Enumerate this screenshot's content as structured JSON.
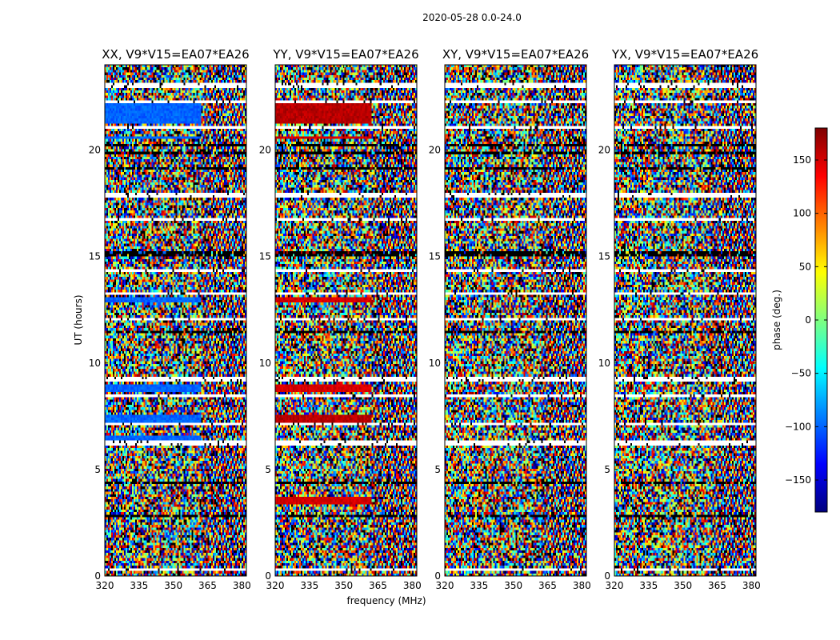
{
  "chart_data": {
    "type": "heatmap",
    "suptitle": "2020-05-28 0.0-24.0",
    "xlabel": "frequency (MHz)",
    "ylabel": "UT (hours)",
    "xlim": [
      320,
      382
    ],
    "ylim": [
      0,
      24
    ],
    "xticks": [
      320,
      335,
      350,
      365,
      380
    ],
    "yticks": [
      0,
      5,
      10,
      15,
      20
    ],
    "panels": [
      {
        "title": "XX, V9*V15=EA07*EA26",
        "pol": "XX"
      },
      {
        "title": "YY, V9*V15=EA07*EA26",
        "pol": "YY"
      },
      {
        "title": "XY, V9*V15=EA07*EA26",
        "pol": "XY"
      },
      {
        "title": "YX, V9*V15=EA07*EA26",
        "pol": "YX"
      }
    ],
    "colorbar": {
      "label": "phase (deg.)",
      "range": [
        -180,
        180
      ],
      "ticks": [
        -150,
        -100,
        -50,
        0,
        50,
        100,
        150
      ],
      "ticklabels": [
        "−150",
        "−100",
        "−50",
        "0",
        "50",
        "100",
        "150"
      ],
      "colormap": "jet"
    },
    "flagged_ut_hours": [
      [
        0.2,
        0.35
      ],
      [
        6.1,
        6.3
      ],
      [
        7.05,
        7.25
      ],
      [
        8.4,
        8.55
      ],
      [
        9.15,
        9.35
      ],
      [
        11.95,
        12.1
      ],
      [
        13.25,
        13.35
      ],
      [
        14.3,
        14.45
      ],
      [
        16.7,
        16.85
      ],
      [
        17.75,
        17.95
      ],
      [
        20.95,
        21.15
      ],
      [
        22.25,
        22.35
      ],
      [
        22.95,
        23.2
      ]
    ],
    "dark_ut_hours": [
      [
        2.8,
        2.9
      ],
      [
        4.35,
        4.45
      ],
      [
        11.45,
        11.55
      ],
      [
        15.0,
        15.2
      ],
      [
        19.1,
        19.2
      ],
      [
        19.85,
        19.95
      ],
      [
        20.2,
        20.3
      ]
    ],
    "coherent_phase_bands": {
      "XX": [
        [
          21.2,
          22.2,
          -100
        ],
        [
          12.85,
          13.1,
          -100
        ],
        [
          7.25,
          7.6,
          -100
        ],
        [
          8.65,
          8.95,
          -100
        ],
        [
          15.1,
          15.25,
          -100
        ],
        [
          20.5,
          20.7,
          -100
        ],
        [
          6.3,
          6.6,
          -100
        ]
      ],
      "YY": [
        [
          21.2,
          22.2,
          160
        ],
        [
          12.85,
          13.1,
          150
        ],
        [
          7.25,
          7.6,
          160
        ],
        [
          8.65,
          8.95,
          150
        ],
        [
          15.1,
          15.25,
          160
        ],
        [
          20.5,
          20.7,
          150
        ],
        [
          3.3,
          3.7,
          150
        ]
      ],
      "XY": [],
      "YX": []
    }
  }
}
